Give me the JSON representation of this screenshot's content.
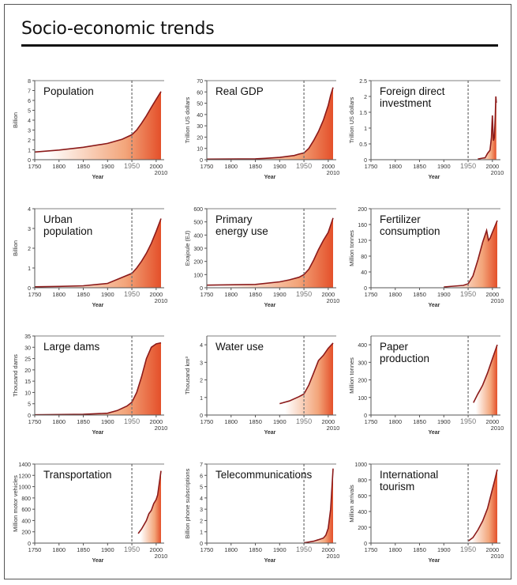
{
  "page_title": "Socio-economic trends",
  "colors": {
    "line": "#8b1a1a",
    "fill_dark": "#e4502a",
    "fill_mid": "#f3a57a",
    "fill_light": "#ffffff",
    "marker": "#777777"
  },
  "chart_data": [
    {
      "type": "area",
      "title": [
        "Population"
      ],
      "ylabel": "Billion",
      "xlabel": "Year",
      "xlim": [
        1750,
        2010
      ],
      "ylim": [
        0,
        8
      ],
      "yticks": [
        0,
        1,
        2,
        3,
        4,
        5,
        6,
        7,
        8
      ],
      "x": [
        1750,
        1800,
        1850,
        1900,
        1930,
        1950,
        1960,
        1970,
        1980,
        1990,
        2000,
        2010
      ],
      "y": [
        0.78,
        0.98,
        1.26,
        1.65,
        2.07,
        2.53,
        3.0,
        3.7,
        4.45,
        5.3,
        6.1,
        6.9
      ]
    },
    {
      "type": "area",
      "title": [
        "Real GDP"
      ],
      "ylabel": "Trillion US dollars",
      "xlabel": "Year",
      "xlim": [
        1750,
        2010
      ],
      "ylim": [
        0,
        70
      ],
      "yticks": [
        0,
        10,
        20,
        30,
        40,
        50,
        60,
        70
      ],
      "x": [
        1750,
        1850,
        1870,
        1900,
        1913,
        1930,
        1940,
        1950,
        1960,
        1970,
        1980,
        1990,
        2000,
        2005,
        2010
      ],
      "y": [
        0.5,
        0.8,
        1.2,
        2,
        2.7,
        3.7,
        5,
        6,
        10,
        17,
        25,
        35,
        48,
        57,
        64
      ]
    },
    {
      "type": "area",
      "title": [
        "Foreign direct",
        "investment"
      ],
      "ylabel": "Trillion US dollars",
      "xlabel": "Year",
      "xlim": [
        1750,
        2010
      ],
      "ylim": [
        0,
        2.5
      ],
      "yticks": [
        0,
        0.5,
        1,
        1.5,
        2,
        2.5
      ],
      "x": [
        1970,
        1980,
        1985,
        1990,
        1995,
        1998,
        2000,
        2002,
        2004,
        2006,
        2007,
        2008
      ],
      "y": [
        0.02,
        0.05,
        0.06,
        0.2,
        0.3,
        0.7,
        1.4,
        0.6,
        0.7,
        1.4,
        2.0,
        1.8
      ]
    },
    {
      "type": "area",
      "title": [
        "Urban",
        "population"
      ],
      "ylabel": "Billion",
      "xlabel": "Year",
      "xlim": [
        1750,
        2010
      ],
      "ylim": [
        0,
        4
      ],
      "yticks": [
        0,
        1,
        2,
        3,
        4
      ],
      "x": [
        1750,
        1800,
        1850,
        1900,
        1950,
        1960,
        1970,
        1980,
        1990,
        2000,
        2010
      ],
      "y": [
        0.05,
        0.07,
        0.1,
        0.22,
        0.73,
        1.0,
        1.35,
        1.75,
        2.25,
        2.85,
        3.5
      ]
    },
    {
      "type": "area",
      "title": [
        "Primary",
        "energy use"
      ],
      "ylabel": "Exajoule (EJ)",
      "xlabel": "Year",
      "xlim": [
        1750,
        2010
      ],
      "ylim": [
        0,
        600
      ],
      "yticks": [
        0,
        100,
        200,
        300,
        400,
        500,
        600
      ],
      "x": [
        1750,
        1850,
        1900,
        1920,
        1940,
        1950,
        1960,
        1970,
        1980,
        1990,
        2000,
        2010
      ],
      "y": [
        20,
        25,
        45,
        60,
        80,
        100,
        140,
        210,
        290,
        360,
        420,
        530
      ]
    },
    {
      "type": "area",
      "title": [
        "Fertilizer",
        "consumption"
      ],
      "ylabel": "Million tonnes",
      "xlabel": "Year",
      "xlim": [
        1750,
        2010
      ],
      "ylim": [
        0,
        200
      ],
      "yticks": [
        0,
        40,
        80,
        120,
        160,
        200
      ],
      "x": [
        1900,
        1930,
        1940,
        1950,
        1960,
        1970,
        1980,
        1988,
        1992,
        1995,
        2000,
        2005,
        2010
      ],
      "y": [
        2,
        5,
        6,
        10,
        30,
        70,
        115,
        145,
        120,
        125,
        140,
        155,
        170
      ]
    },
    {
      "type": "area",
      "title": [
        "Large dams"
      ],
      "ylabel": "Thousand dams",
      "xlabel": "Year",
      "xlim": [
        1750,
        2010
      ],
      "ylim": [
        0,
        35
      ],
      "yticks": [
        0,
        5,
        10,
        15,
        20,
        25,
        30,
        35
      ],
      "x": [
        1750,
        1850,
        1900,
        1920,
        1940,
        1950,
        1960,
        1970,
        1980,
        1990,
        2000,
        2010
      ],
      "y": [
        0.1,
        0.3,
        0.8,
        2,
        4,
        5.7,
        10,
        17,
        25,
        30,
        31.5,
        32
      ]
    },
    {
      "type": "area",
      "title": [
        "Water use"
      ],
      "ylabel": "Thousand km³",
      "xlabel": "Year",
      "xlim": [
        1750,
        2010
      ],
      "ylim": [
        0,
        4.5
      ],
      "yticks": [
        0,
        1,
        2,
        3,
        4
      ],
      "x": [
        1900,
        1920,
        1940,
        1950,
        1960,
        1970,
        1980,
        1990,
        2000,
        2010
      ],
      "y": [
        0.65,
        0.8,
        1.05,
        1.2,
        1.7,
        2.4,
        3.1,
        3.4,
        3.8,
        4.1
      ]
    },
    {
      "type": "area",
      "title": [
        "Paper",
        "production"
      ],
      "ylabel": "Million tonnes",
      "xlabel": "Year",
      "xlim": [
        1750,
        2010
      ],
      "ylim": [
        0,
        450
      ],
      "yticks": [
        0,
        100,
        200,
        300,
        400
      ],
      "x": [
        1961,
        1970,
        1975,
        1980,
        1990,
        2000,
        2010
      ],
      "y": [
        70,
        120,
        145,
        170,
        240,
        320,
        400
      ]
    },
    {
      "type": "area",
      "title": [
        "Transportation"
      ],
      "ylabel": "Million motor vehicles",
      "xlabel": "Year",
      "xlim": [
        1750,
        2010
      ],
      "ylim": [
        0,
        1400
      ],
      "yticks": [
        0,
        200,
        400,
        600,
        800,
        1000,
        1200,
        1400
      ],
      "x": [
        1963,
        1970,
        1980,
        1985,
        1990,
        1995,
        2000,
        2003,
        2007,
        2010
      ],
      "y": [
        170,
        250,
        400,
        520,
        580,
        700,
        770,
        850,
        1100,
        1280
      ]
    },
    {
      "type": "area",
      "title": [
        "Telecommunications"
      ],
      "ylabel": "Billion phone subscriptions",
      "xlabel": "Year",
      "xlim": [
        1750,
        2010
      ],
      "ylim": [
        0,
        7
      ],
      "yticks": [
        0,
        1,
        2,
        3,
        4,
        5,
        6,
        7
      ],
      "x": [
        1950,
        1960,
        1970,
        1980,
        1990,
        1995,
        2000,
        2005,
        2010
      ],
      "y": [
        0.02,
        0.1,
        0.17,
        0.3,
        0.45,
        0.7,
        1.3,
        3.0,
        6.6
      ]
    },
    {
      "type": "area",
      "title": [
        "International",
        "tourism"
      ],
      "ylabel": "Million arrivals",
      "xlabel": "Year",
      "xlim": [
        1750,
        2010
      ],
      "ylim": [
        0,
        1000
      ],
      "yticks": [
        0,
        200,
        400,
        600,
        800,
        1000
      ],
      "x": [
        1950,
        1960,
        1970,
        1980,
        1990,
        2000,
        2005,
        2010
      ],
      "y": [
        25,
        70,
        165,
        280,
        440,
        680,
        800,
        930
      ]
    }
  ],
  "xticks": [
    1750,
    1800,
    1850,
    1900,
    1950,
    2000
  ],
  "xtick_extra": "2010",
  "marker_year": 1950
}
